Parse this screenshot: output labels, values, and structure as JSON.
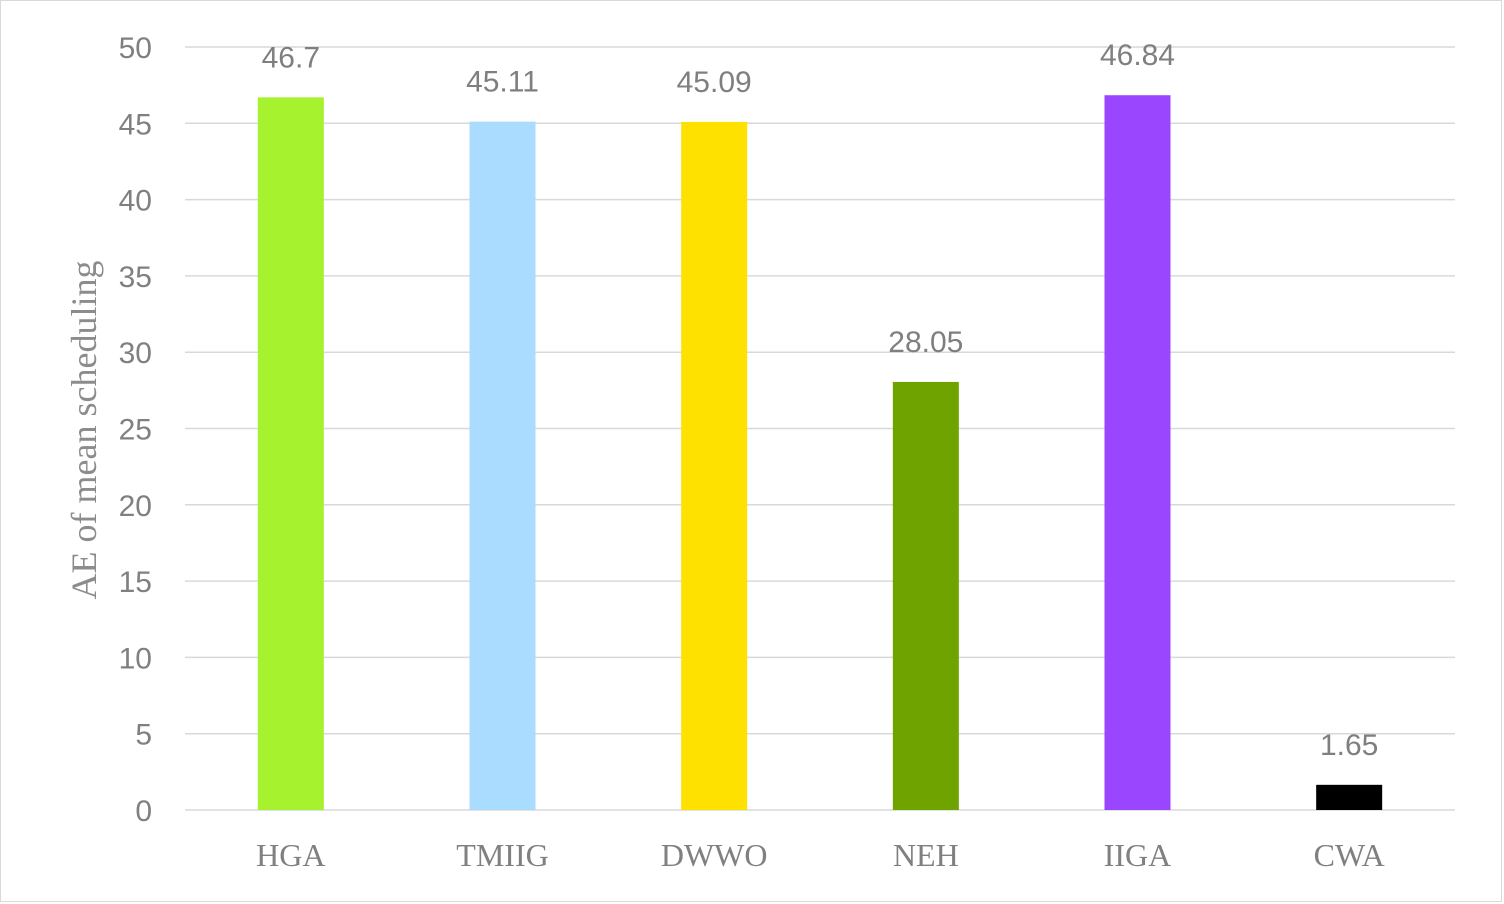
{
  "chart_data": {
    "type": "bar",
    "title": "",
    "xlabel": "",
    "ylabel": "AE of mean scheduling",
    "ylim": [
      0,
      50
    ],
    "yticks": [
      0,
      5,
      10,
      15,
      20,
      25,
      30,
      35,
      40,
      45,
      50
    ],
    "grid": true,
    "legend": "none",
    "categories": [
      "HGA",
      "TMIIG",
      "DWWO",
      "NEH",
      "IIGA",
      "CWA"
    ],
    "values": [
      46.7,
      45.11,
      45.09,
      28.05,
      46.84,
      1.65
    ],
    "data_labels": [
      "46.7",
      "45.11",
      "45.09",
      "28.05",
      "46.84",
      "1.65"
    ],
    "colors": [
      "#a6f22e",
      "#a9dcff",
      "#ffe100",
      "#6fa300",
      "#9a46ff",
      "#000000"
    ]
  }
}
